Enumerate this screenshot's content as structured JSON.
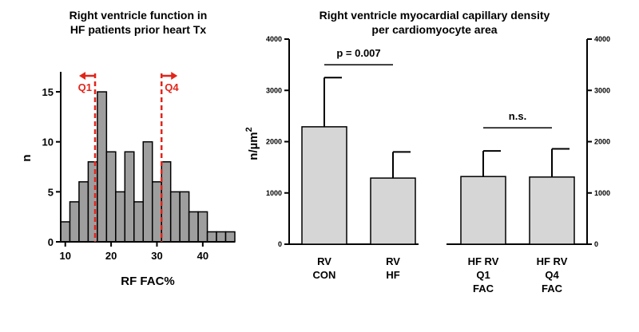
{
  "chart_data": [
    {
      "type": "histogram",
      "title_lines": [
        "Right ventricle function in",
        "HF patients prior heart Tx"
      ],
      "xlabel": "RF FAC%",
      "ylabel": "n",
      "xlim": [
        9,
        47
      ],
      "ylim": [
        0,
        17
      ],
      "xticks": [
        10,
        20,
        30,
        40
      ],
      "yticks": [
        0,
        5,
        10,
        15
      ],
      "bin_width": 2,
      "bin_starts": [
        9,
        11,
        13,
        15,
        17,
        19,
        21,
        23,
        25,
        27,
        29,
        31,
        33,
        35,
        37,
        39,
        41,
        43,
        45
      ],
      "counts": [
        2,
        4,
        6,
        8,
        15,
        9,
        5,
        9,
        4,
        10,
        6,
        8,
        5,
        5,
        3,
        3,
        1,
        1,
        1
      ],
      "bar_color": "#9e9e9e",
      "markers": [
        {
          "label": "Q1",
          "x": 16.5,
          "arrow": "left",
          "color": "#e1251b"
        },
        {
          "label": "Q4",
          "x": 31,
          "arrow": "right",
          "color": "#e1251b"
        }
      ]
    },
    {
      "type": "bar",
      "title_lines": [
        "Right ventricle myocardial capillary density",
        "per cardiomyocyte area"
      ],
      "ylabel": "n/µm",
      "ylabel_superscript": "2",
      "ylim": [
        0,
        4000
      ],
      "yticks": [
        0,
        1000,
        2000,
        3000,
        4000
      ],
      "categories": [
        [
          "RV",
          "CON"
        ],
        [
          "RV",
          "HF"
        ],
        [
          "HF RV",
          "Q1",
          "FAC"
        ],
        [
          "HF RV",
          "Q4",
          "FAC"
        ]
      ],
      "values": [
        2290,
        1290,
        1320,
        1310
      ],
      "errors": [
        960,
        510,
        500,
        550
      ],
      "bar_color": "#d6d6d6",
      "comparisons": [
        {
          "between": [
            0,
            1
          ],
          "label": "p = 0.007",
          "y": 3500
        },
        {
          "between": [
            2,
            3
          ],
          "label": "n.s.",
          "y": 2270
        }
      ]
    }
  ]
}
